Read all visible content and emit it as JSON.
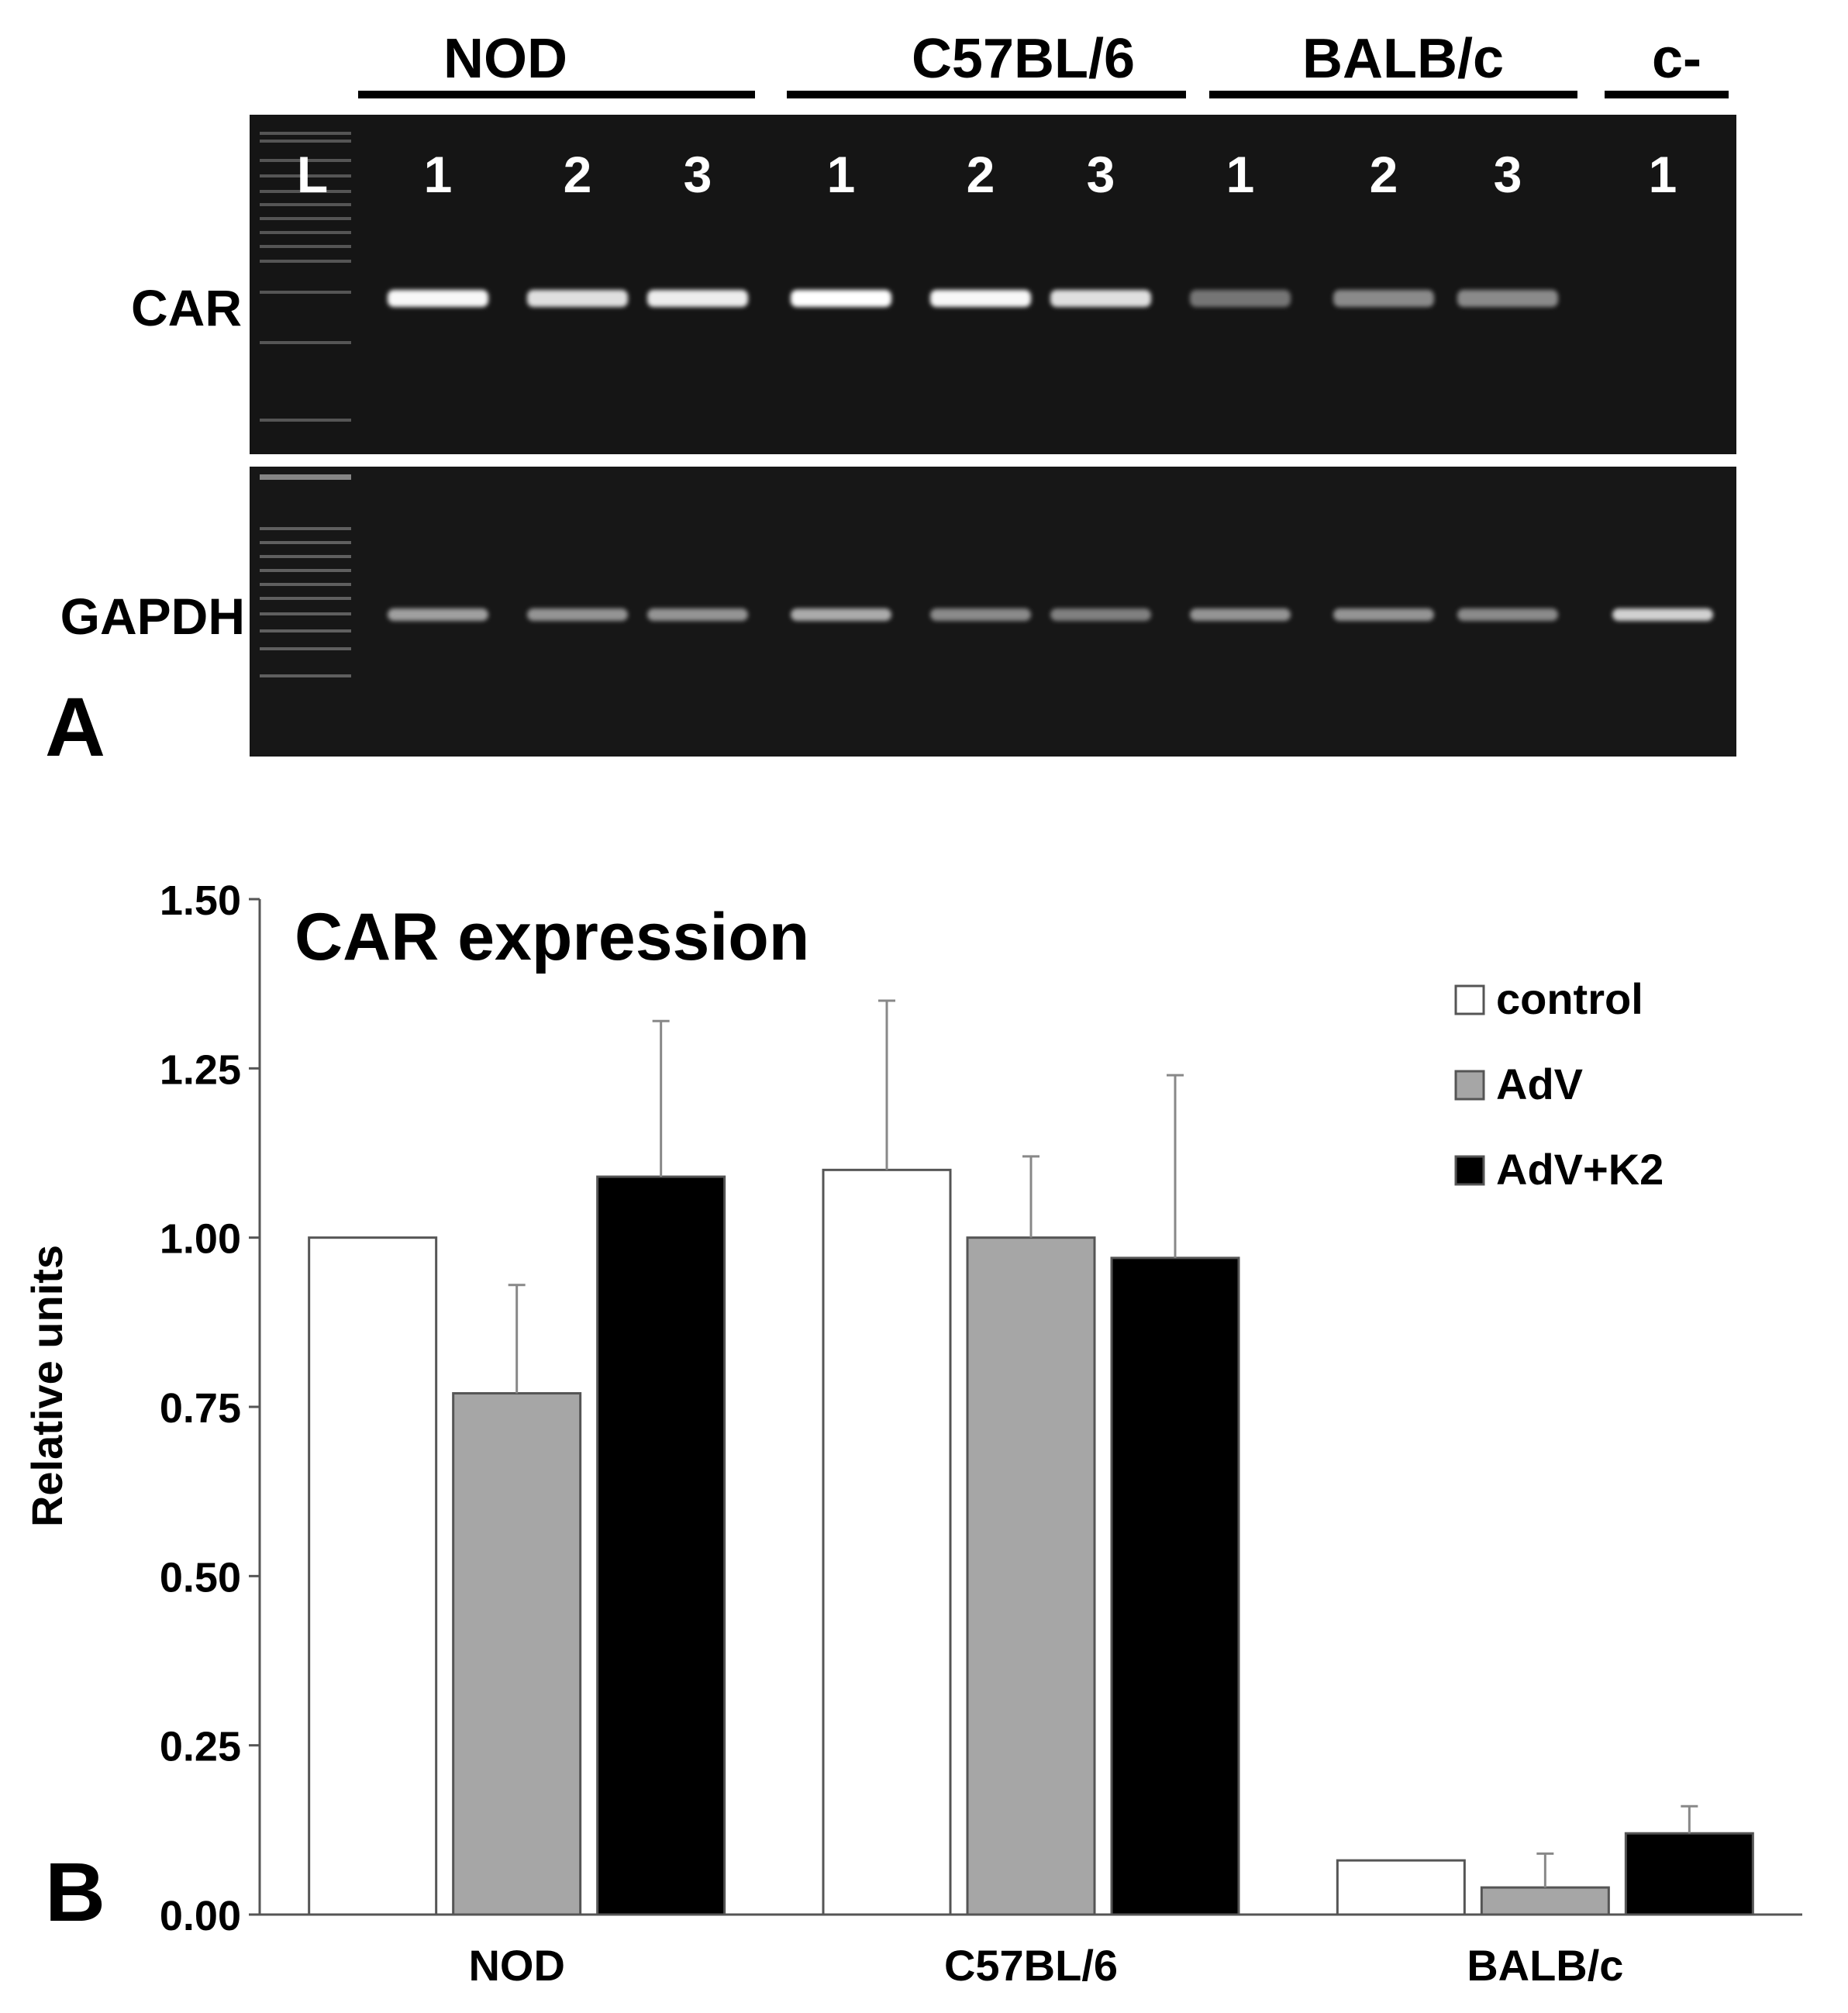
{
  "panel_a": {
    "panel_label": "A",
    "groups": [
      {
        "label": "NOD",
        "lanes": [
          "1",
          "2",
          "3"
        ]
      },
      {
        "label": "C57BL/6",
        "lanes": [
          "1",
          "2",
          "3"
        ]
      },
      {
        "label": "BALB/c",
        "lanes": [
          "1",
          "2",
          "3"
        ]
      },
      {
        "label": "c-",
        "lanes": [
          "1"
        ]
      }
    ],
    "ladder_label": "L",
    "gels": [
      {
        "label": "CAR",
        "band_intensity": [
          0.95,
          0.85,
          0.9,
          1.0,
          0.95,
          0.85,
          0.4,
          0.5,
          0.5,
          0.0
        ]
      },
      {
        "label": "GAPDH",
        "band_intensity": [
          0.6,
          0.55,
          0.55,
          0.65,
          0.5,
          0.45,
          0.55,
          0.55,
          0.5,
          0.8
        ]
      }
    ]
  },
  "chart_data": {
    "type": "bar",
    "panel_label": "B",
    "title": "CAR expression",
    "xlabel": "",
    "ylabel": "Relative units",
    "categories": [
      "NOD",
      "C57BL/6",
      "BALB/c"
    ],
    "ylim": [
      0,
      1.5
    ],
    "yticks": [
      "1.50",
      "1.25",
      "1.00",
      "0.75",
      "0.50",
      "0.25",
      "0.00"
    ],
    "legend_position": "top-right",
    "grid": false,
    "series": [
      {
        "name": "control",
        "color": "#ffffff",
        "values": [
          1.0,
          1.1,
          0.08
        ],
        "errors": [
          0.0,
          0.25,
          0.0
        ]
      },
      {
        "name": "AdV",
        "color": "#a6a6a6",
        "values": [
          0.77,
          1.0,
          0.04
        ],
        "errors": [
          0.16,
          0.12,
          0.05
        ]
      },
      {
        "name": "AdV+K2",
        "color": "#000000",
        "values": [
          1.09,
          0.97,
          0.12
        ],
        "errors": [
          0.23,
          0.27,
          0.04
        ]
      }
    ]
  }
}
